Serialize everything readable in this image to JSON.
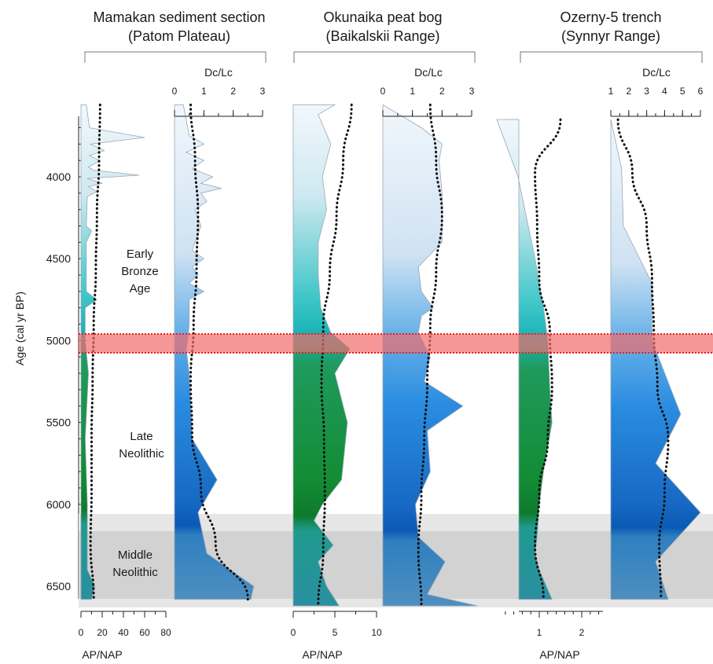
{
  "sites": [
    {
      "title_line1": "Mamakan sediment section",
      "title_line2": "(Patom Plateau)"
    },
    {
      "title_line1": "Okunaika peat bog",
      "title_line2": "(Baikalskii Range)"
    },
    {
      "title_line1": "Ozerny-5 trench",
      "title_line2": "(Synnyr Range)"
    }
  ],
  "y_axis": {
    "label": "Age (cal yr BP)",
    "ticks": [
      "4000",
      "4500",
      "5000",
      "5500",
      "6000",
      "6500"
    ]
  },
  "periods": [
    "Early",
    "Bronze",
    "Age",
    "Late",
    "Neolithic",
    "Middle",
    "Neolithic"
  ],
  "colors": {
    "event_band": "#f26b6b",
    "middle_neolithic_band": "#d4d4d4",
    "ap_gradient": [
      "#eaf4fb",
      "#1db9c3",
      "#1a8a3c",
      "#0d7a2a"
    ],
    "dc_gradient": [
      "#eaf4fb",
      "#5aa9e6",
      "#1f7fd6",
      "#0a56b0"
    ]
  },
  "chart_data": [
    {
      "type": "area",
      "site": "Mamakan sediment section",
      "variable": "AP/NAP",
      "xlabel": "AP/NAP",
      "xticks": [
        "0",
        "20",
        "40",
        "60",
        "80"
      ],
      "xlim": [
        0,
        80
      ],
      "ylim": [
        3560,
        6620
      ],
      "age": [
        3560,
        3700,
        3760,
        3800,
        3840,
        3870,
        3900,
        3940,
        3960,
        3990,
        4010,
        4040,
        4060,
        4090,
        4120,
        4300,
        4330,
        4400,
        4700,
        4750,
        4800,
        5000,
        5200,
        5600,
        6000,
        6400,
        6500,
        6580
      ],
      "values": [
        5,
        8,
        60,
        9,
        22,
        8,
        18,
        7,
        12,
        55,
        6,
        20,
        7,
        15,
        6,
        5,
        10,
        5,
        5,
        15,
        4,
        4,
        7,
        4,
        6,
        6,
        13,
        10
      ],
      "trend": [
        18,
        17,
        15,
        14,
        12,
        11,
        10,
        10,
        9,
        12
      ]
    },
    {
      "type": "area",
      "site": "Mamakan sediment section",
      "variable": "Dc/Lc",
      "xlabel": "Dc/Lc",
      "xticks": [
        "0",
        "1",
        "2",
        "3"
      ],
      "xlim": [
        0,
        3
      ],
      "ylim": [
        3560,
        6620
      ],
      "age": [
        3560,
        3750,
        3800,
        3850,
        3900,
        3950,
        4000,
        4040,
        4070,
        4100,
        4150,
        4200,
        4300,
        4450,
        4500,
        4550,
        4600,
        4650,
        4700,
        4750,
        4900,
        5000,
        5050,
        5200,
        5600,
        5850,
        6050,
        6300,
        6500,
        6580
      ],
      "values": [
        0.3,
        0.5,
        1.0,
        0.4,
        1.0,
        0.6,
        1.3,
        0.9,
        1.6,
        0.9,
        1.1,
        0.7,
        0.9,
        0.6,
        1.0,
        0.6,
        0.8,
        0.5,
        1.0,
        0.5,
        0.5,
        0.45,
        0.4,
        0.5,
        0.6,
        1.45,
        0.8,
        1.1,
        2.7,
        2.6
      ],
      "trend": [
        0.55,
        0.7,
        0.8,
        0.75,
        0.65,
        0.55,
        0.6,
        0.9,
        1.4,
        2.5
      ]
    },
    {
      "type": "area",
      "site": "Okunaika peat bog",
      "variable": "AP/NAP",
      "xlabel": "AP/NAP",
      "xticks": [
        "0",
        "5",
        "10"
      ],
      "xlim": [
        0,
        10
      ],
      "ylim": [
        3560,
        6620
      ],
      "age": [
        3560,
        3620,
        3800,
        4000,
        4200,
        4400,
        4600,
        4800,
        4950,
        5050,
        5200,
        5400,
        5500,
        5650,
        5850,
        6000,
        6100,
        6250,
        6350,
        6500,
        6620
      ],
      "values": [
        5,
        3,
        4.5,
        3.5,
        4,
        3,
        3,
        3.3,
        4.5,
        6.8,
        5,
        6,
        6.5,
        6.2,
        5.8,
        3.5,
        2.5,
        4.8,
        3,
        4,
        5.5
      ],
      "trend": [
        7,
        6,
        5.2,
        4.4,
        3.6,
        3.4,
        3.7,
        3.8,
        3.6,
        3.0
      ]
    },
    {
      "type": "area",
      "site": "Okunaika peat bog",
      "variable": "Dc/Lc",
      "xlabel": "Dc/Lc",
      "xticks": [
        "0",
        "1",
        "2",
        "3"
      ],
      "xlim": [
        0,
        3
      ],
      "ylim": [
        3560,
        6620
      ],
      "age": [
        3560,
        3700,
        3800,
        3900,
        4100,
        4400,
        4550,
        4700,
        4800,
        4850,
        4950,
        5100,
        5250,
        5400,
        5550,
        5800,
        6000,
        6200,
        6350,
        6550,
        6620
      ],
      "values": [
        0,
        1.3,
        2.0,
        1.9,
        2.0,
        2.0,
        1.2,
        1.3,
        1.7,
        1.3,
        1.2,
        1.6,
        1.4,
        2.7,
        1.5,
        1.6,
        1.1,
        1.2,
        2.1,
        1.5,
        3.2
      ],
      "trend": [
        1.6,
        1.8,
        2.0,
        1.8,
        1.6,
        1.5,
        1.4,
        1.3,
        1.2,
        1.3
      ]
    },
    {
      "type": "area",
      "site": "Ozerny-5 trench",
      "variable": "AP/NAP",
      "xlabel": "AP/NAP",
      "xticks": [
        "1",
        "2"
      ],
      "xlim": [
        0,
        2.5
      ],
      "ylim": [
        3560,
        6620
      ],
      "age": [
        3650,
        4000,
        4500,
        4800,
        5000,
        5300,
        5500,
        5800,
        6000,
        6200,
        6300,
        6400,
        6580
      ],
      "values": [
        0,
        0.5,
        0.9,
        1.1,
        1.2,
        1.25,
        1.3,
        1.1,
        1.0,
        0.95,
        0.9,
        1.0,
        1.3
      ],
      "trend": [
        1.5,
        0.9,
        0.95,
        1.0,
        1.25,
        1.3,
        1.2,
        1.0,
        0.9,
        1.1
      ]
    },
    {
      "type": "area",
      "site": "Ozerny-5 trench",
      "variable": "Dc/Lc",
      "xlabel": "Dc/Lc",
      "xticks": [
        "1",
        "2",
        "3",
        "4",
        "5",
        "6"
      ],
      "xlim": [
        1,
        6
      ],
      "ylim": [
        3560,
        6620
      ],
      "age": [
        3650,
        3950,
        4300,
        4650,
        4800,
        5000,
        5450,
        5750,
        6050,
        6350,
        6580
      ],
      "values": [
        1.0,
        1.6,
        1.7,
        3.3,
        3.3,
        3.3,
        4.9,
        3.5,
        6.0,
        3.5,
        4.2
      ],
      "trend": [
        1.4,
        2.2,
        3.0,
        3.3,
        3.4,
        3.6,
        4.2,
        4.0,
        3.7,
        3.8
      ]
    }
  ]
}
